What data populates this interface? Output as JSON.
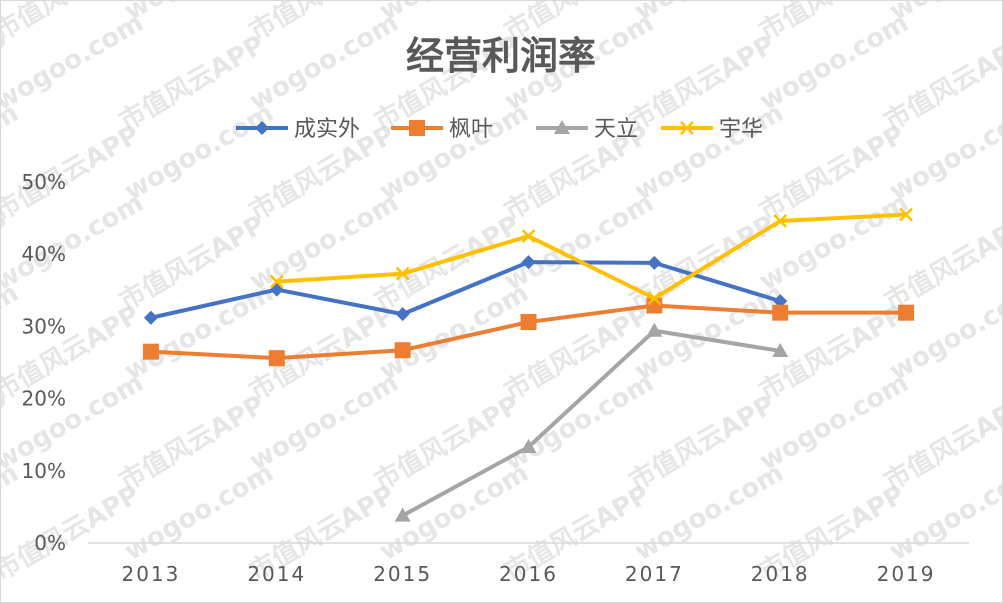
{
  "chart_data": {
    "type": "line",
    "title": "经营利润率",
    "xlabel": "",
    "ylabel": "",
    "categories": [
      "2013",
      "2014",
      "2015",
      "2016",
      "2017",
      "2018",
      "2019"
    ],
    "ylim": [
      0,
      0.5
    ],
    "yticks": [
      "0%",
      "10%",
      "20%",
      "30%",
      "40%",
      "50%"
    ],
    "ytick_values": [
      0,
      0.1,
      0.2,
      0.3,
      0.4,
      0.5
    ],
    "legend_position": "top",
    "grid": false,
    "series": [
      {
        "name": "成实外",
        "color": "#4472C4",
        "marker": "diamond",
        "values": [
          0.312,
          0.351,
          0.317,
          0.389,
          0.388,
          0.335,
          null
        ]
      },
      {
        "name": "枫叶",
        "color": "#ED7D31",
        "marker": "square",
        "values": [
          0.265,
          0.256,
          0.267,
          0.306,
          0.329,
          0.319,
          0.319
        ]
      },
      {
        "name": "天立",
        "color": "#A5A5A5",
        "marker": "triangle",
        "values": [
          null,
          null,
          0.038,
          0.133,
          0.294,
          0.266,
          null
        ]
      },
      {
        "name": "宇华",
        "color": "#FFC000",
        "marker": "x",
        "values": [
          null,
          0.362,
          0.373,
          0.425,
          0.339,
          0.446,
          0.455
        ]
      }
    ]
  },
  "watermark": {
    "cn": "市值风云APP",
    "en": "wogoo.com"
  }
}
